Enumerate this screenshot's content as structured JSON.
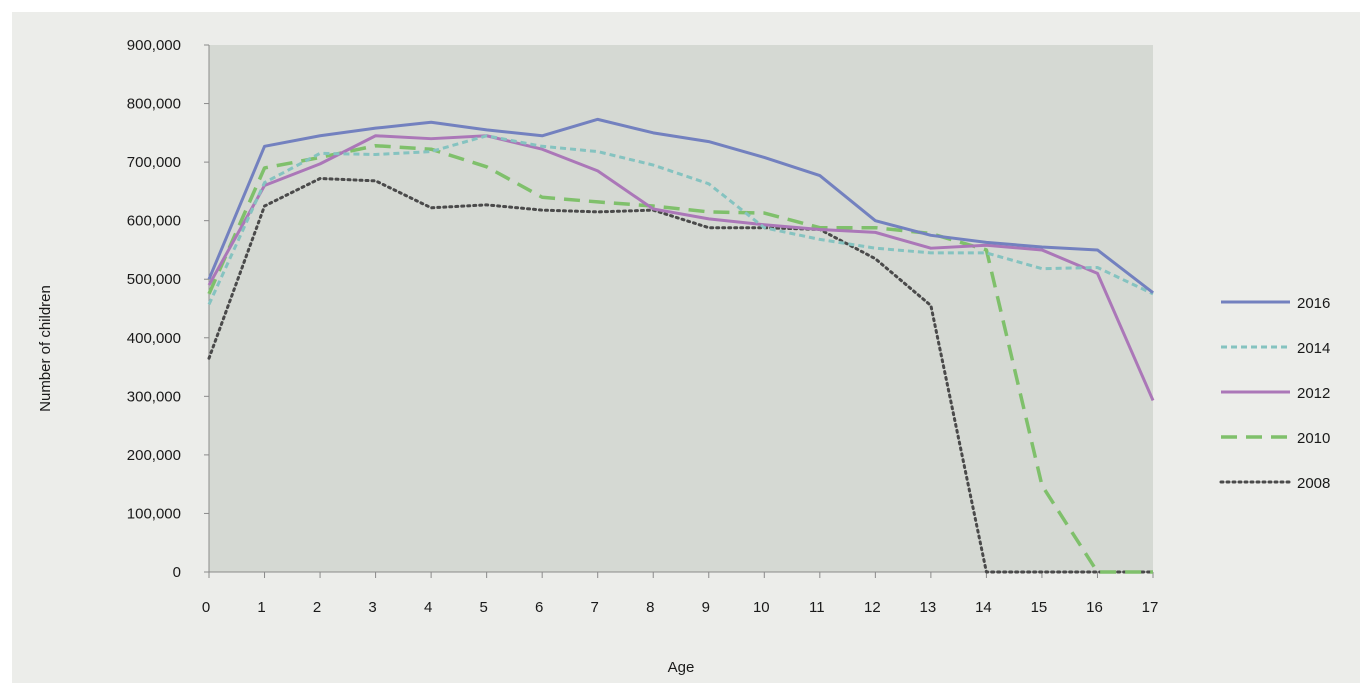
{
  "chart_data": {
    "type": "line",
    "title": "",
    "xlabel": "Age",
    "ylabel": "Number of children",
    "x": [
      0,
      1,
      2,
      3,
      4,
      5,
      6,
      7,
      8,
      9,
      10,
      11,
      12,
      13,
      14,
      15,
      16,
      17
    ],
    "xlim": [
      0,
      17
    ],
    "ylim": [
      0,
      900000
    ],
    "y_ticks": [
      0,
      100000,
      200000,
      300000,
      400000,
      500000,
      600000,
      700000,
      800000,
      900000
    ],
    "y_tick_labels": [
      "0",
      "100,000",
      "200,000",
      "300,000",
      "400,000",
      "500,000",
      "600,000",
      "700,000",
      "800,000",
      "900,000"
    ],
    "x_tick_labels": [
      "0",
      "1",
      "2",
      "3",
      "4",
      "5",
      "6",
      "7",
      "8",
      "9",
      "10",
      "11",
      "12",
      "13",
      "14",
      "15",
      "16",
      "17"
    ],
    "grid": false,
    "legend_position": "right",
    "plot_background": "#d5d9d3",
    "page_background": "#ecedea",
    "series": [
      {
        "name": "2016",
        "color": "#7381bf",
        "style": "solid",
        "values": [
          500000,
          727000,
          745000,
          758000,
          768000,
          755000,
          745000,
          773000,
          750000,
          735000,
          708000,
          677000,
          600000,
          575000,
          563000,
          555000,
          550000,
          477000
        ]
      },
      {
        "name": "2014",
        "color": "#85c3c0",
        "style": "dashed",
        "values": [
          457000,
          665000,
          715000,
          713000,
          718000,
          745000,
          727000,
          718000,
          695000,
          663000,
          588000,
          568000,
          553000,
          545000,
          545000,
          518000,
          520000,
          475000
        ]
      },
      {
        "name": "2012",
        "color": "#ab77b8",
        "style": "solid",
        "values": [
          490000,
          660000,
          697000,
          745000,
          740000,
          745000,
          722000,
          685000,
          620000,
          603000,
          593000,
          585000,
          580000,
          553000,
          558000,
          550000,
          510000,
          293000
        ]
      },
      {
        "name": "2010",
        "color": "#7fc06b",
        "style": "longdash",
        "values": [
          475000,
          690000,
          708000,
          728000,
          722000,
          692000,
          640000,
          632000,
          625000,
          615000,
          613000,
          588000,
          588000,
          578000,
          550000,
          148000,
          0,
          0
        ]
      },
      {
        "name": "2008",
        "color": "#4a4a4a",
        "style": "dotted",
        "values": [
          365000,
          625000,
          672000,
          668000,
          622000,
          627000,
          618000,
          615000,
          618000,
          588000,
          588000,
          585000,
          535000,
          455000,
          0,
          0,
          0,
          0
        ]
      }
    ]
  }
}
